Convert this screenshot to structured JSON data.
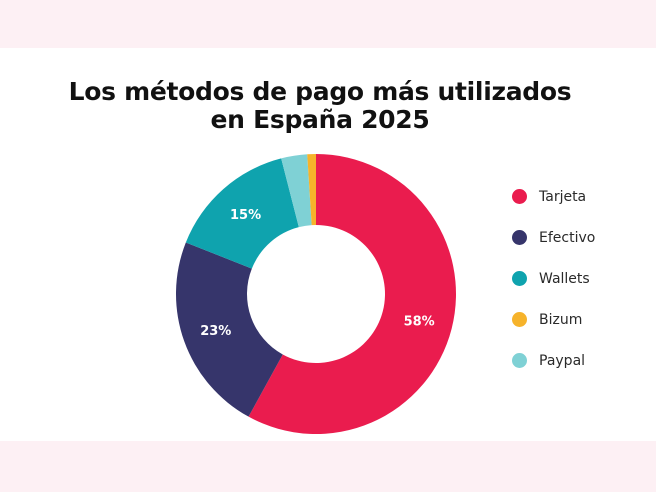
{
  "title_lines": [
    "Los métodos de pago más utilizados",
    "en España 2025"
  ],
  "chart_data": {
    "type": "pie",
    "subtype": "donut",
    "title": "Los métodos de pago más utilizados en España 2025",
    "unit": "%",
    "start": "top",
    "direction": "clockwise",
    "legend_position": "right",
    "slices": [
      {
        "name": "Tarjeta",
        "value": 58,
        "label": "58%",
        "color": "#ea1c4e"
      },
      {
        "name": "Efectivo",
        "value": 23,
        "label": "23%",
        "color": "#36356b"
      },
      {
        "name": "Wallets",
        "value": 15,
        "label": "15%",
        "color": "#0fa3ae"
      },
      {
        "name": "Paypal",
        "value": 3,
        "label": "",
        "color": "#7fd1d5"
      },
      {
        "name": "Bizum",
        "value": 1,
        "label": "",
        "color": "#f6b32b"
      }
    ],
    "legend": [
      {
        "name": "Tarjeta",
        "color": "#ea1c4e"
      },
      {
        "name": "Efectivo",
        "color": "#36356b"
      },
      {
        "name": "Wallets",
        "color": "#0fa3ae"
      },
      {
        "name": "Bizum",
        "color": "#f6b32b"
      },
      {
        "name": "Paypal",
        "color": "#7fd1d5"
      }
    ]
  },
  "colors": {
    "band": "#fdf0f4",
    "background": "#ffffff"
  }
}
